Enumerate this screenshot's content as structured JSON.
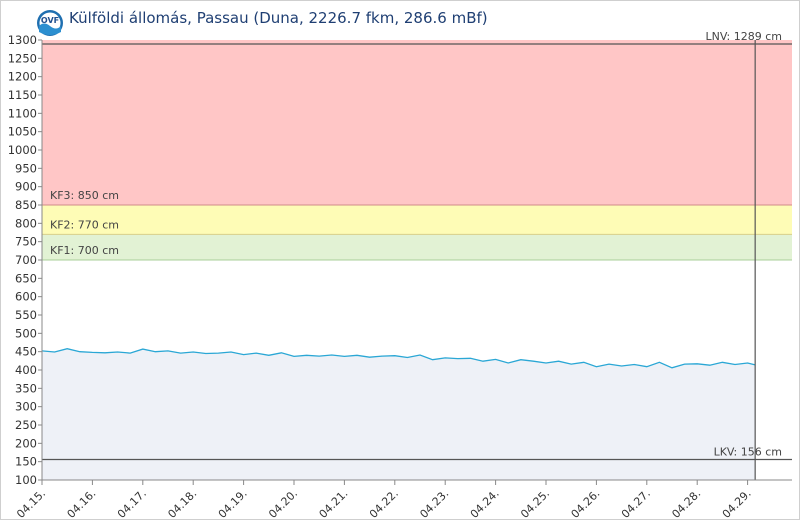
{
  "header": {
    "title": "Külföldi állomás, Passau (Duna, 2226.7 fkm, 286.6 mBf)",
    "logo_icon": "ovf-water-logo-icon"
  },
  "chart_data": {
    "type": "line",
    "ylim": [
      100,
      1300
    ],
    "yticks": [
      100,
      150,
      200,
      250,
      300,
      350,
      400,
      450,
      500,
      550,
      600,
      650,
      700,
      750,
      800,
      850,
      900,
      950,
      1000,
      1050,
      1100,
      1150,
      1200,
      1250,
      1300
    ],
    "x_ticks": [
      "04.15.",
      "04.16.",
      "04.17.",
      "04.18.",
      "04.19.",
      "04.20.",
      "04.21.",
      "04.22.",
      "04.23.",
      "04.24.",
      "04.25.",
      "04.26.",
      "04.27.",
      "04.28.",
      "04.29."
    ],
    "xlim": [
      0,
      14.2
    ],
    "bands": [
      {
        "from": 850,
        "to": 1300,
        "color": "#ffc6c6"
      },
      {
        "from": 770,
        "to": 850,
        "color": "#fefcb6"
      },
      {
        "from": 700,
        "to": 770,
        "color": "#e2f2d4"
      }
    ],
    "thresholds": [
      {
        "label": "KF3: 850 cm",
        "value": 850,
        "color": "#d08a8a"
      },
      {
        "label": "KF2: 770 cm",
        "value": 770,
        "color": "#d8d08a"
      },
      {
        "label": "KF1: 700 cm",
        "value": 700,
        "color": "#a8cf98"
      }
    ],
    "limits": [
      {
        "label": "LNV: 1289 cm",
        "value": 1289
      },
      {
        "label": "LKV: 156 cm",
        "value": 156
      }
    ],
    "current_x": 14.15,
    "series": [
      {
        "color": "#2aa7d5",
        "fill": "#eef1f7",
        "x": [
          0,
          0.25,
          0.5,
          0.75,
          1.0,
          1.25,
          1.5,
          1.75,
          2.0,
          2.25,
          2.5,
          2.75,
          3.0,
          3.25,
          3.5,
          3.75,
          4.0,
          4.25,
          4.5,
          4.75,
          5.0,
          5.25,
          5.5,
          5.75,
          6.0,
          6.25,
          6.5,
          6.75,
          7.0,
          7.25,
          7.5,
          7.75,
          8.0,
          8.25,
          8.5,
          8.75,
          9.0,
          9.25,
          9.5,
          9.75,
          10.0,
          10.25,
          10.5,
          10.75,
          11.0,
          11.25,
          11.5,
          11.75,
          12.0,
          12.25,
          12.5,
          12.75,
          13.0,
          13.25,
          13.5,
          13.75,
          14.0,
          14.15
        ],
        "values": [
          452,
          449,
          458,
          450,
          448,
          447,
          449,
          446,
          457,
          450,
          452,
          446,
          449,
          445,
          446,
          449,
          442,
          446,
          440,
          447,
          437,
          440,
          438,
          441,
          437,
          440,
          435,
          438,
          439,
          434,
          441,
          428,
          433,
          431,
          432,
          424,
          429,
          419,
          428,
          424,
          419,
          424,
          416,
          421,
          409,
          416,
          411,
          415,
          409,
          421,
          406,
          416,
          417,
          413,
          421,
          415,
          419,
          414
        ]
      }
    ]
  }
}
